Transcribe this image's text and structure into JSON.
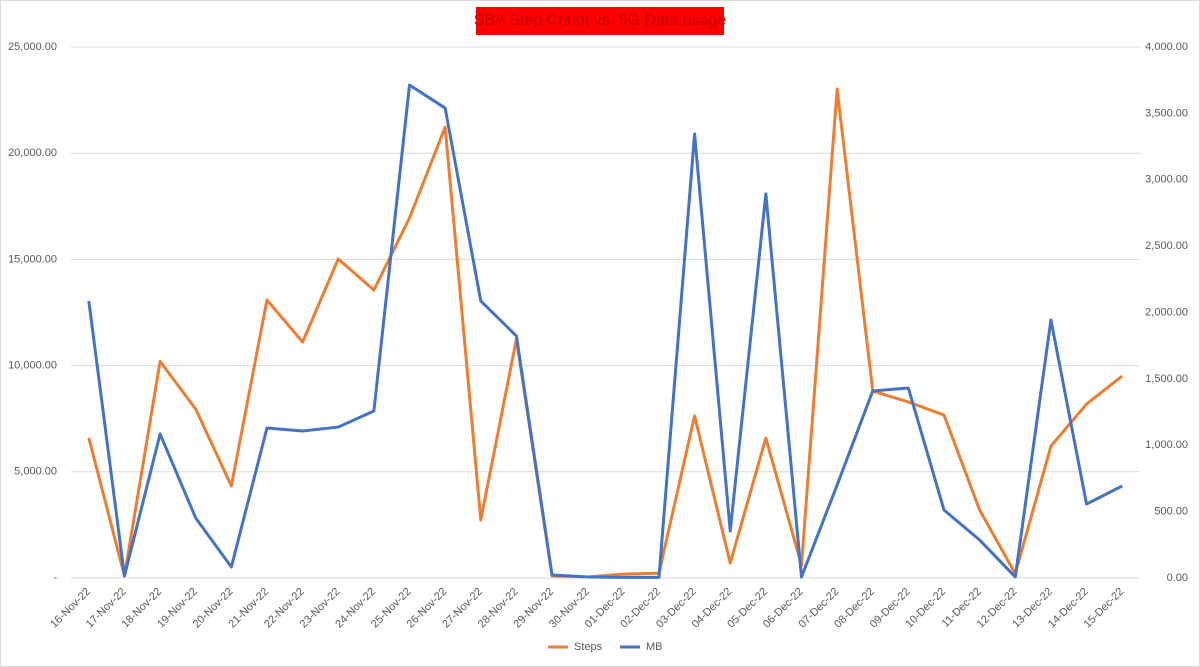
{
  "chart_data": {
    "type": "line",
    "title": "SBA Step Count vs. 5G Data usage",
    "categories": [
      "16-Nov-22",
      "17-Nov-22",
      "18-Nov-22",
      "19-Nov-22",
      "20-Nov-22",
      "21-Nov-22",
      "22-Nov-22",
      "23-Nov-22",
      "24-Nov-22",
      "25-Nov-22",
      "26-Nov-22",
      "27-Nov-22",
      "28-Nov-22",
      "29-Nov-22",
      "30-Nov-22",
      "01-Dec-22",
      "02-Dec-22",
      "03-Dec-22",
      "04-Dec-22",
      "05-Dec-22",
      "06-Dec-22",
      "07-Dec-22",
      "08-Dec-22",
      "09-Dec-22",
      "10-Dec-22",
      "11-Dec-22",
      "12-Dec-22",
      "13-Dec-22",
      "14-Dec-22",
      "15-Dec-22"
    ],
    "series": [
      {
        "name": "Steps",
        "color": "#ed7d31",
        "values": [
          6600,
          100,
          10200,
          7950,
          4330,
          13090,
          11110,
          15020,
          13560,
          16950,
          21230,
          2730,
          11250,
          100,
          50,
          180,
          230,
          7630,
          700,
          6590,
          600,
          23020,
          8800,
          8290,
          7670,
          3200,
          200,
          6210,
          8190,
          9510
        ]
      },
      {
        "name": "MB",
        "color": "#4472c4",
        "axis": "y2",
        "values": [
          2087,
          15,
          1085,
          452,
          83,
          1130,
          1107,
          1137,
          1258,
          3714,
          3540,
          2087,
          1823,
          23,
          8,
          5,
          5,
          3345,
          354,
          2893,
          8,
          700,
          1409,
          1431,
          512,
          286,
          8,
          1944,
          557,
          693
        ]
      }
    ],
    "ylim": [
      0,
      25000
    ],
    "yticks": [
      {
        "value": 0,
        "label": "-"
      },
      {
        "value": 5000,
        "label": "5,000.00"
      },
      {
        "value": 10000,
        "label": "10,000.00"
      },
      {
        "value": 15000,
        "label": "15,000.00"
      },
      {
        "value": 20000,
        "label": "20,000.00"
      },
      {
        "value": 25000,
        "label": "25,000.00"
      }
    ],
    "y2lim": [
      0,
      4000
    ],
    "y2ticks": [
      {
        "value": 0,
        "label": "0.00"
      },
      {
        "value": 500,
        "label": "500.00"
      },
      {
        "value": 1000,
        "label": "1,000.00"
      },
      {
        "value": 1500,
        "label": "1,500.00"
      },
      {
        "value": 2000,
        "label": "2,000.00"
      },
      {
        "value": 2500,
        "label": "2,500.00"
      },
      {
        "value": 3000,
        "label": "3,000.00"
      },
      {
        "value": 3500,
        "label": "3,500.00"
      },
      {
        "value": 4000,
        "label": "4,000.00"
      }
    ],
    "grid": true,
    "legend": "bottom"
  }
}
